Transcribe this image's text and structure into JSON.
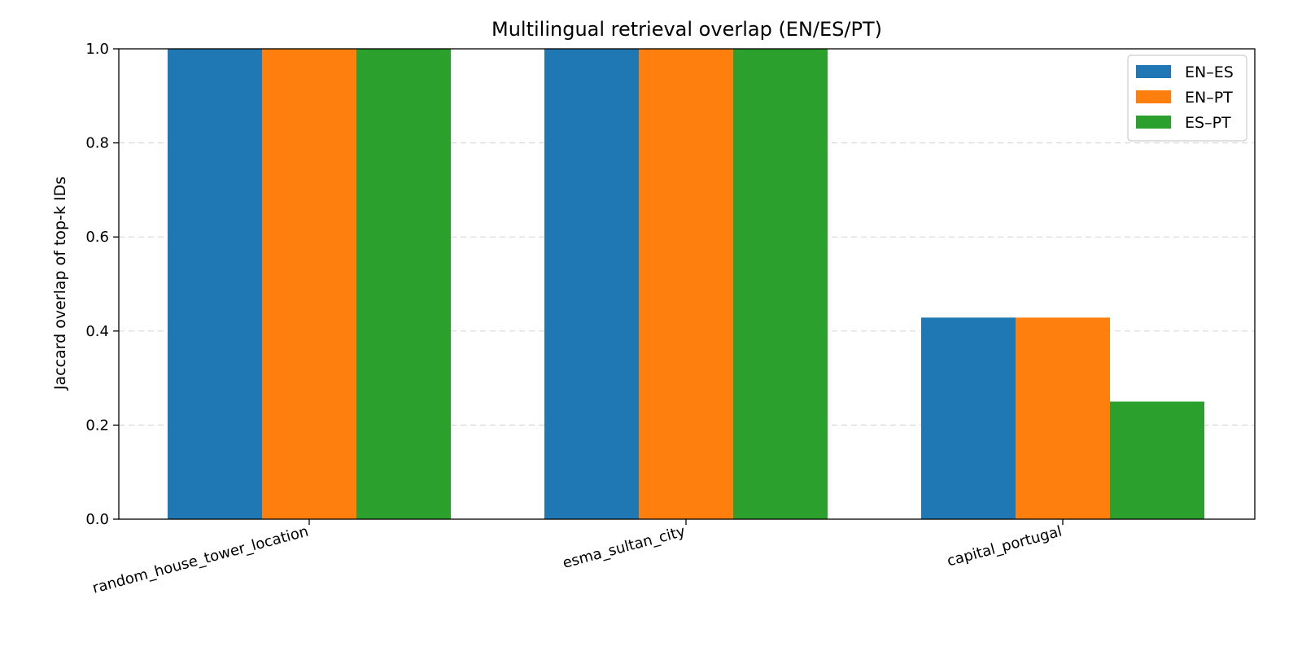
{
  "chart_data": {
    "type": "bar",
    "title": "Multilingual retrieval overlap (EN/ES/PT)",
    "xlabel": "",
    "ylabel": "Jaccard overlap of top-k IDs",
    "categories": [
      "random_house_tower_location",
      "esma_sultan_city",
      "capital_portugal"
    ],
    "series": [
      {
        "name": "EN–ES",
        "color": "#1f77b4",
        "values": [
          1.0,
          1.0,
          0.4286
        ]
      },
      {
        "name": "EN–PT",
        "color": "#ff7f0e",
        "values": [
          1.0,
          1.0,
          0.4286
        ]
      },
      {
        "name": "ES–PT",
        "color": "#2ca02c",
        "values": [
          1.0,
          1.0,
          0.25
        ]
      }
    ],
    "ylim": [
      0,
      1.0
    ],
    "yticks": [
      "0.0",
      "0.2",
      "0.4",
      "0.6",
      "0.8",
      "1.0"
    ],
    "grid": "y-dashed",
    "legend_position": "top-right"
  }
}
